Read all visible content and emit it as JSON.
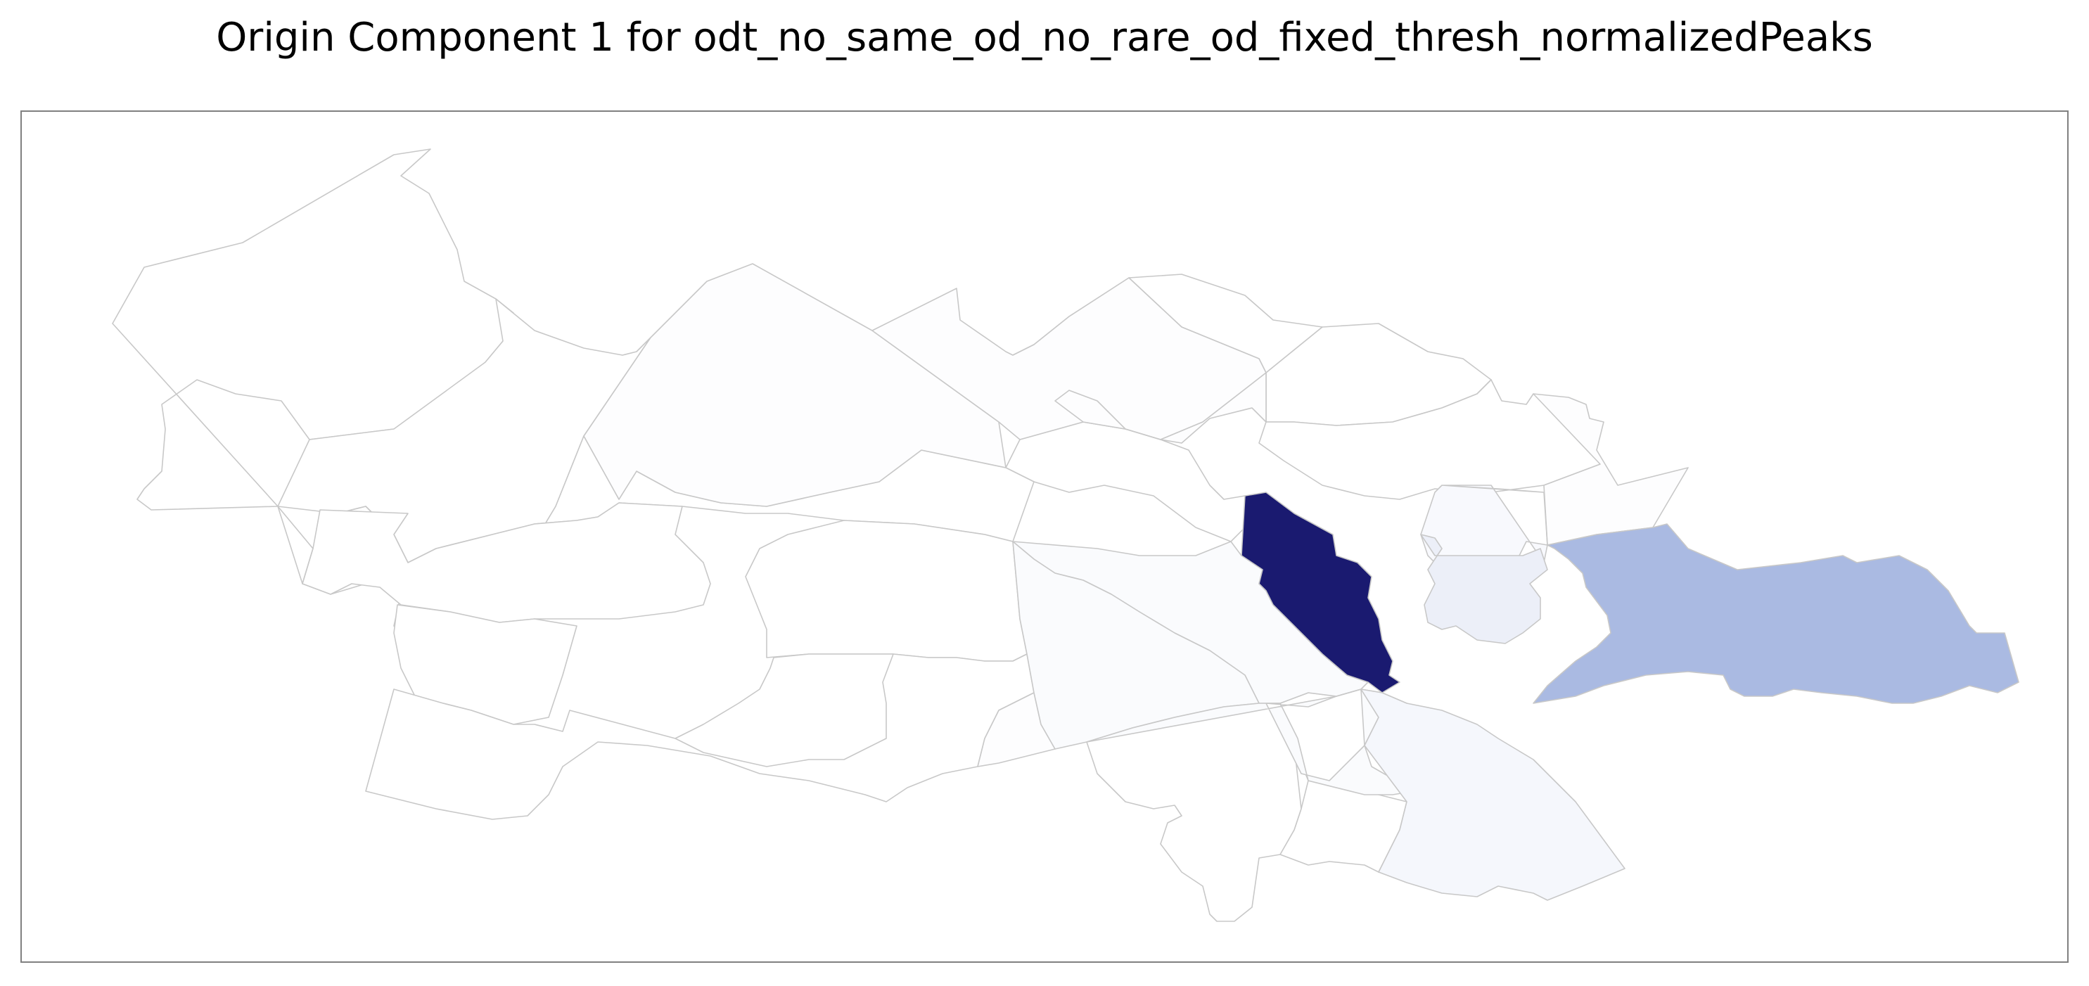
{
  "title": "Origin Component 1 for odt_no_same_od_no_rare_od_fixed_thresh_normalizedPeaks",
  "map": {
    "colormap": "Blues-purple",
    "boundary_color": "#c8c8c8",
    "frame_color": "#808080",
    "districts": [
      {
        "name": "nw-large-1",
        "value": 0.0
      },
      {
        "name": "nw-large-2",
        "value": 0.0
      },
      {
        "name": "north-1",
        "value": 0.01
      },
      {
        "name": "north-2",
        "value": 0.01
      },
      {
        "name": "north-3",
        "value": 0.0
      },
      {
        "name": "north-4",
        "value": 0.0
      },
      {
        "name": "north-5",
        "value": 0.01
      },
      {
        "name": "north-6",
        "value": 0.0
      },
      {
        "name": "northeast-1",
        "value": 0.0
      },
      {
        "name": "northeast-2",
        "value": 0.0
      },
      {
        "name": "northeast-3",
        "value": 0.01
      },
      {
        "name": "east-1",
        "value": 0.03
      },
      {
        "name": "east-2",
        "value": 0.08
      },
      {
        "name": "east-large",
        "value": 0.35
      },
      {
        "name": "center-dark",
        "value": 1.0
      },
      {
        "name": "center-1",
        "value": 0.02
      },
      {
        "name": "center-2",
        "value": 0.02
      },
      {
        "name": "center-3",
        "value": 0.01
      },
      {
        "name": "south-1",
        "value": 0.02
      },
      {
        "name": "south-2",
        "value": 0.04
      },
      {
        "name": "south-3",
        "value": 0.0
      },
      {
        "name": "south-4",
        "value": 0.0
      },
      {
        "name": "west-1",
        "value": 0.0
      },
      {
        "name": "west-2",
        "value": 0.0
      },
      {
        "name": "west-3",
        "value": 0.0
      },
      {
        "name": "west-4",
        "value": 0.0
      },
      {
        "name": "west-5",
        "value": 0.0
      }
    ]
  }
}
